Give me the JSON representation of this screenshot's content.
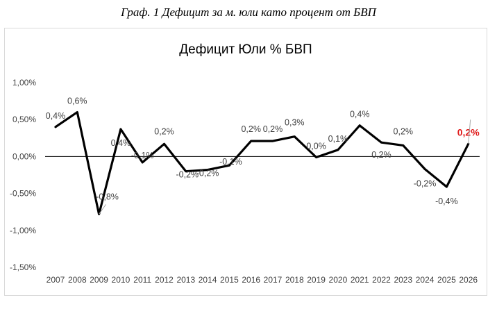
{
  "caption": "Граф. 1 Дефицит за м. юли като процент от БВП",
  "chart_data": {
    "type": "line",
    "title": "Дефицит Юли % БВП",
    "xlabel": "",
    "ylabel": "",
    "categories": [
      "2007",
      "2008",
      "2009",
      "2010",
      "2011",
      "2012",
      "2013",
      "2014",
      "2015",
      "2016",
      "2017",
      "2018",
      "2019",
      "2020",
      "2021",
      "2022",
      "2023",
      "2024",
      "2025",
      "2026"
    ],
    "series": [
      {
        "values": [
          0.4,
          0.6,
          -0.78,
          0.37,
          -0.08,
          0.17,
          -0.2,
          -0.18,
          -0.12,
          0.21,
          0.21,
          0.27,
          -0.01,
          0.09,
          0.42,
          0.19,
          0.15,
          -0.17,
          -0.41,
          0.17
        ],
        "color": "#000000"
      }
    ],
    "data_labels": [
      "0,4%",
      "0,6%",
      "-0,8%",
      "0,4%",
      "-0,1%",
      "0,2%",
      "-0,2%",
      "-0,2%",
      "-0,1%",
      "0,2%",
      "0,2%",
      "0,3%",
      "0,0%",
      "0,1%",
      "0,4%",
      "0,2%",
      "0,2%",
      "-0,2%",
      "-0,4%",
      "0,2%"
    ],
    "highlight_label_index": 19,
    "highlight_color": "#e01b1b",
    "y_ticks": [
      1.0,
      0.5,
      0.0,
      -0.5,
      -1.0,
      -1.5
    ],
    "y_tick_labels": [
      "1,00%",
      "0,50%",
      "0,00%",
      "-0,50%",
      "-1,00%",
      "-1,50%"
    ],
    "ylim": [
      -1.5,
      1.0
    ],
    "grid": false,
    "legend": "none"
  }
}
